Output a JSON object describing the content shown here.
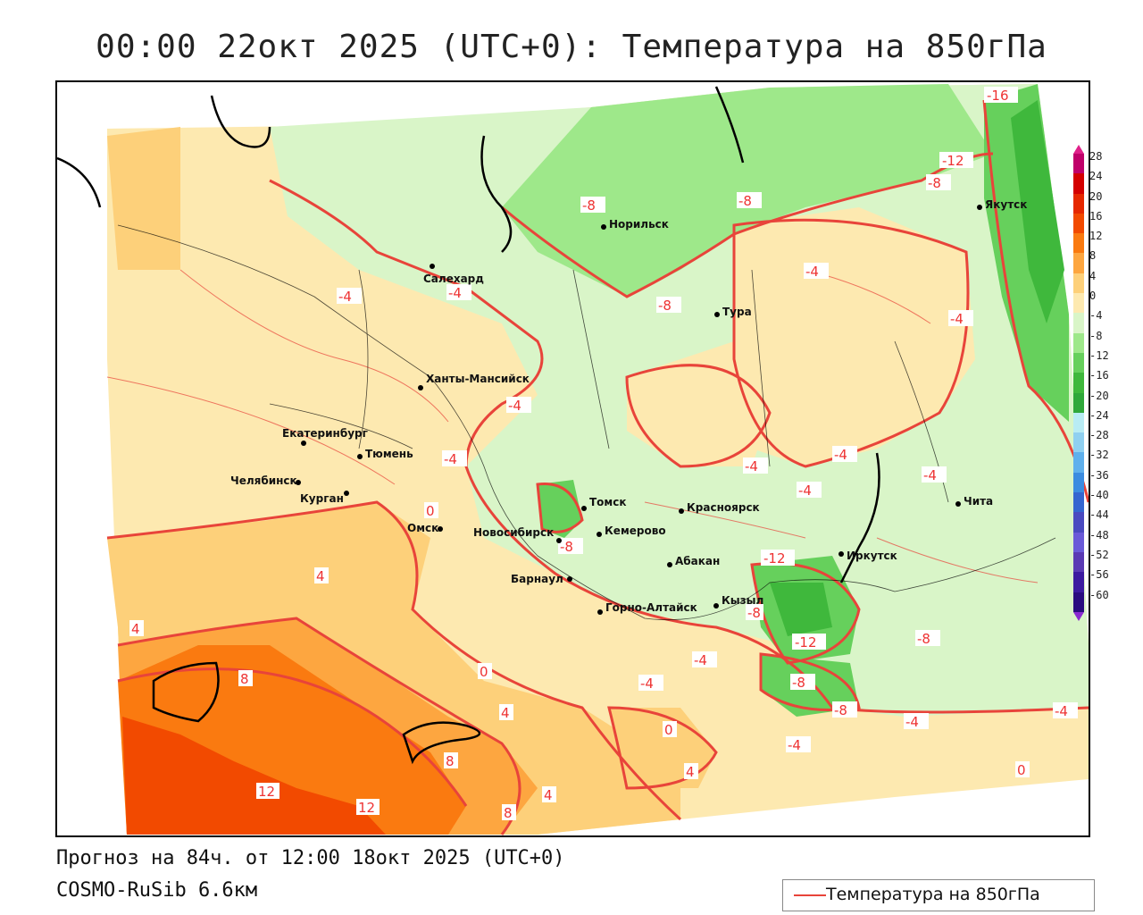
{
  "title": "00:00 22окт 2025 (UTC+0): Температура на 850гПа",
  "forecast_line": "Прогноз на 84ч. от 12:00 18окт 2025 (UTC+0)",
  "model_line": "COSMO-RuSib 6.6км",
  "legend": {
    "label": "Температура на 850гПа",
    "color": "#e8443a"
  },
  "colorbar": {
    "labels": [
      "28",
      "24",
      "20",
      "16",
      "12",
      "8",
      "4",
      "0",
      "-4",
      "-8",
      "-12",
      "-16",
      "-20",
      "-24",
      "-28",
      "-32",
      "-36",
      "-40",
      "-44",
      "-48",
      "-52",
      "-56",
      "-60"
    ],
    "colors": [
      "#c0006a",
      "#d40000",
      "#e62800",
      "#f24a00",
      "#fa7a10",
      "#fda640",
      "#fdd07a",
      "#fde9b0",
      "#d9f5c8",
      "#9ee88a",
      "#66d05c",
      "#3fb83c",
      "#2fa83a",
      "#b8ecf4",
      "#8fd0f0",
      "#5fb0ec",
      "#3b8ce0",
      "#3466d0",
      "#4a4ac0",
      "#6a5ad8",
      "#5a3ab4",
      "#3c1aa0",
      "#2a0c80"
    ]
  },
  "cities": [
    {
      "name": "Салехард"
    },
    {
      "name": "Норильск"
    },
    {
      "name": "Якутск"
    },
    {
      "name": "Тура"
    },
    {
      "name": "Ханты-Мансийск"
    },
    {
      "name": "Екатеринбург"
    },
    {
      "name": "Тюмень"
    },
    {
      "name": "Челябинск"
    },
    {
      "name": "Курган"
    },
    {
      "name": "Омск"
    },
    {
      "name": "Новосибирск"
    },
    {
      "name": "Томск"
    },
    {
      "name": "Кемерово"
    },
    {
      "name": "Красноярск"
    },
    {
      "name": "Барнаул"
    },
    {
      "name": "Абакан"
    },
    {
      "name": "Горно-Алтайск"
    },
    {
      "name": "Кызыл"
    },
    {
      "name": "Иркутск"
    },
    {
      "name": "Чита"
    }
  ],
  "contour_labels": [
    "-16",
    "-12",
    "-8",
    "-8",
    "-8",
    "-8",
    "-4",
    "-4",
    "-4",
    "-4",
    "-4",
    "-4",
    "-4",
    "-4",
    "-4",
    "-4",
    "-8",
    "-12",
    "-12",
    "-8",
    "-8",
    "-8",
    "-4",
    "-4",
    "-4",
    "0",
    "0",
    "0",
    "0",
    "4",
    "4",
    "4",
    "4",
    "4",
    "8",
    "8",
    "8",
    "12",
    "12",
    "-4",
    "-4",
    "-8"
  ]
}
